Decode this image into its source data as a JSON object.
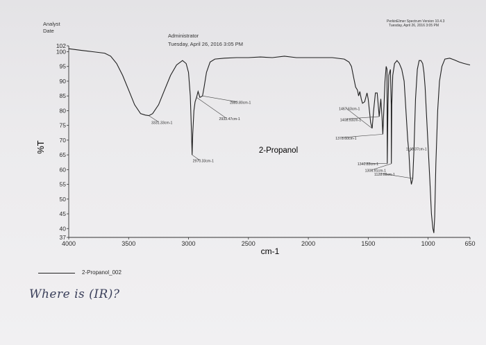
{
  "header": {
    "analyst_label": "Analyst",
    "date_label": "Date",
    "operator": "Administrator",
    "timestamp": "Tuesday, April 26, 2016 3:05 PM",
    "software": "PerkinElmer Spectrum Version 10.4.3",
    "software_timestamp": "Tuesday, April 26, 2016 3:05 PM"
  },
  "annotation": {
    "handwritten_note": "Where is (IR)?"
  },
  "chart_data": {
    "type": "line",
    "title": "2-Propanol",
    "xlabel": "cm-1",
    "ylabel": "%T",
    "xlim": [
      4000,
      650
    ],
    "ylim": [
      37,
      102
    ],
    "x_ticks": [
      4000,
      3500,
      3000,
      2500,
      2000,
      1500,
      1000,
      650
    ],
    "y_ticks": [
      37,
      40,
      45,
      50,
      55,
      60,
      65,
      70,
      75,
      80,
      85,
      90,
      95,
      100,
      102
    ],
    "grid": false,
    "series": [
      {
        "name": "2-Propanol_002",
        "color": "#1e1e1e",
        "points": [
          [
            4000,
            101
          ],
          [
            3900,
            100.5
          ],
          [
            3800,
            100
          ],
          [
            3700,
            99.5
          ],
          [
            3650,
            98.5
          ],
          [
            3600,
            96
          ],
          [
            3550,
            92
          ],
          [
            3500,
            87
          ],
          [
            3450,
            82
          ],
          [
            3400,
            79
          ],
          [
            3360,
            78.5
          ],
          [
            3331,
            78.3
          ],
          [
            3300,
            79
          ],
          [
            3250,
            82
          ],
          [
            3200,
            87
          ],
          [
            3150,
            92
          ],
          [
            3100,
            95.5
          ],
          [
            3050,
            97
          ],
          [
            3020,
            96
          ],
          [
            3000,
            93
          ],
          [
            2985,
            85
          ],
          [
            2975,
            72
          ],
          [
            2970,
            65
          ],
          [
            2965,
            72
          ],
          [
            2955,
            80
          ],
          [
            2945,
            83
          ],
          [
            2933,
            84.5
          ],
          [
            2920,
            86.5
          ],
          [
            2905,
            84.5
          ],
          [
            2883,
            85
          ],
          [
            2870,
            88
          ],
          [
            2850,
            93
          ],
          [
            2820,
            96.5
          ],
          [
            2780,
            97.5
          ],
          [
            2700,
            97.8
          ],
          [
            2600,
            98
          ],
          [
            2500,
            98
          ],
          [
            2400,
            98.2
          ],
          [
            2300,
            98
          ],
          [
            2200,
            98.5
          ],
          [
            2100,
            98
          ],
          [
            2000,
            98
          ],
          [
            1900,
            98
          ],
          [
            1800,
            98
          ],
          [
            1700,
            97.5
          ],
          [
            1660,
            96.5
          ],
          [
            1640,
            95
          ],
          [
            1620,
            91
          ],
          [
            1605,
            88
          ],
          [
            1590,
            87
          ],
          [
            1580,
            85
          ],
          [
            1570,
            86.5
          ],
          [
            1558,
            84
          ],
          [
            1548,
            82.5
          ],
          [
            1530,
            83
          ],
          [
            1520,
            84.5
          ],
          [
            1510,
            86
          ],
          [
            1500,
            84
          ],
          [
            1490,
            80
          ],
          [
            1480,
            76
          ],
          [
            1467,
            74
          ],
          [
            1455,
            80
          ],
          [
            1440,
            86
          ],
          [
            1425,
            86
          ],
          [
            1408,
            78
          ],
          [
            1395,
            84
          ],
          [
            1385,
            78
          ],
          [
            1378,
            72
          ],
          [
            1370,
            80
          ],
          [
            1360,
            90
          ],
          [
            1350,
            95
          ],
          [
            1343,
            94
          ],
          [
            1340.83,
            62
          ],
          [
            1335,
            82
          ],
          [
            1328,
            92
          ],
          [
            1315,
            94
          ],
          [
            1308,
            82
          ],
          [
            1306.91,
            62
          ],
          [
            1303,
            82
          ],
          [
            1295,
            92
          ],
          [
            1280,
            96
          ],
          [
            1260,
            97
          ],
          [
            1240,
            96
          ],
          [
            1220,
            94
          ],
          [
            1200,
            90
          ],
          [
            1185,
            80
          ],
          [
            1170,
            70
          ],
          [
            1160.37,
            66
          ],
          [
            1150,
            58
          ],
          [
            1140,
            55
          ],
          [
            1128.08,
            57
          ],
          [
            1118,
            67
          ],
          [
            1105,
            84
          ],
          [
            1090,
            94
          ],
          [
            1075,
            97
          ],
          [
            1060,
            97
          ],
          [
            1045,
            96
          ],
          [
            1035,
            93
          ],
          [
            1025,
            88
          ],
          [
            1015,
            80
          ],
          [
            1000,
            68
          ],
          [
            985,
            56
          ],
          [
            972,
            45
          ],
          [
            960,
            40
          ],
          [
            952,
            38.5
          ],
          [
            945,
            44
          ],
          [
            935,
            62
          ],
          [
            920,
            80
          ],
          [
            905,
            90
          ],
          [
            885,
            95
          ],
          [
            860,
            97.5
          ],
          [
            820,
            97.8
          ],
          [
            780,
            97.2
          ],
          [
            740,
            96.5
          ],
          [
            700,
            96
          ],
          [
            650,
            95.5
          ]
        ]
      }
    ],
    "peak_labels": [
      {
        "text": "3331.33cm-1",
        "x": 3331.33,
        "y": 78.3,
        "label_x": 3310,
        "label_y": 75.5
      },
      {
        "text": "2970.33cm-1",
        "x": 2970.33,
        "y": 65,
        "label_x": 2965,
        "label_y": 62.5
      },
      {
        "text": "2933.47cm-1",
        "x": 2933.47,
        "y": 84.5,
        "label_x": 2745,
        "label_y": 76.8
      },
      {
        "text": "2883.80cm-1",
        "x": 2883.8,
        "y": 85,
        "label_x": 2655,
        "label_y": 82.3
      },
      {
        "text": "1467.63cm-1",
        "x": 1467.63,
        "y": 74,
        "label_x": 1745,
        "label_y": 80.2
      },
      {
        "text": "1408.93cm-1",
        "x": 1408.93,
        "y": 78,
        "label_x": 1735,
        "label_y": 76.5
      },
      {
        "text": "1378.60cm-1",
        "x": 1378.6,
        "y": 72,
        "label_x": 1773,
        "label_y": 70.2
      },
      {
        "text": "1160.37cm-1",
        "x": 1160.37,
        "y": 66,
        "label_x": 1185,
        "label_y": 66.6
      },
      {
        "text": "1340.83cm-1",
        "x": 1340.83,
        "y": 62,
        "label_x": 1590,
        "label_y": 61.5
      },
      {
        "text": "1306.91cm-1",
        "x": 1306.91,
        "y": 62,
        "label_x": 1527,
        "label_y": 59.2
      },
      {
        "text": "1128.08cm-1",
        "x": 1128.08,
        "y": 57,
        "label_x": 1450,
        "label_y": 58.0
      }
    ]
  }
}
